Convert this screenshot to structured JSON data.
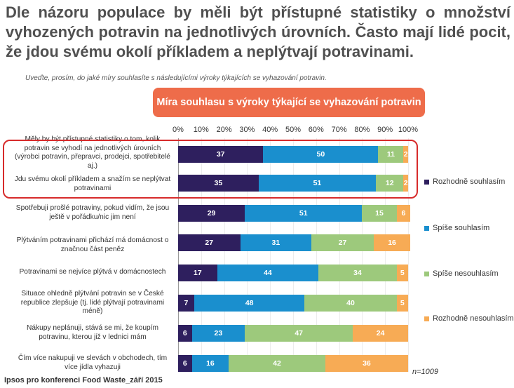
{
  "headline": "Dle názoru populace by měli být přístupné statistiky o množství vyhozených potravin na jednotlivých úrovních. Často mají lidé pocit, že jdou svému okolí příkladem a neplýtvají potravinami.",
  "question": "Uveďte, prosím, do jaké míry souhlasíte s následujícími výroky týkajících se vyhazování potravin.",
  "banner": "Míra souhlasu s výroky týkající se vyhazování potravin",
  "sample_note": "n=1009",
  "source": "Ipsos pro konferenci Food Waste_září 2015",
  "colors": {
    "rozhodne_souhlasim": "#2e1f5e",
    "spise_souhlasim": "#1a8fce",
    "spise_nesouhlasim": "#9dc97c",
    "rozhodne_nesouhlasim": "#f7ab55",
    "highlight": "#d72b2b",
    "banner": "#ee6c4a"
  },
  "chart_data": {
    "type": "bar",
    "orientation": "horizontal",
    "stacked": true,
    "title": "Míra souhlasu s výroky týkající se vyhazování potravin",
    "xlim": [
      0,
      100
    ],
    "x_ticks": [
      "0%",
      "10%",
      "20%",
      "30%",
      "40%",
      "50%",
      "60%",
      "70%",
      "80%",
      "90%",
      "100%"
    ],
    "categories": [
      "Měly by být přístupné statistiky o tom, kolik potravin se vyhodí na jednotlivých úrovních (výrobci potravin, přepravci, prodejci, spotřebitelé aj.)",
      "Jdu svému okolí příkladem a snažím se neplýtvat potravinami",
      "Spotřebuji prošlé potraviny, pokud vidím, že jsou ještě v pořádku/nic jim není",
      "Plýtváním potravinami přichází má domácnost o značnou část peněz",
      "Potravinami se nejvíce plýtvá v domácnostech",
      "Situace ohledně plýtvání potravin se v České republice zlepšuje (tj. lidé plýtvají potravinami méně)",
      "Nákupy neplánuji, stává se mi, že koupím potravinu, kterou již v lednici mám",
      "Čím více nakupuji ve slevách v obchodech, tím více jídla vyhazuji"
    ],
    "series": [
      {
        "name": "Rozhodně souhlasím",
        "values": [
          37,
          35,
          29,
          27,
          17,
          7,
          6,
          6
        ]
      },
      {
        "name": "Spíše souhlasím",
        "values": [
          50,
          51,
          51,
          31,
          44,
          48,
          23,
          16
        ]
      },
      {
        "name": "Spíše nesouhlasím",
        "values": [
          11,
          12,
          15,
          27,
          34,
          40,
          47,
          42
        ]
      },
      {
        "name": "Rozhodně nesouhlasím",
        "values": [
          2,
          2,
          6,
          16,
          5,
          5,
          24,
          36
        ]
      }
    ],
    "highlighted_rows": [
      0,
      1
    ],
    "legend_position": "right"
  }
}
